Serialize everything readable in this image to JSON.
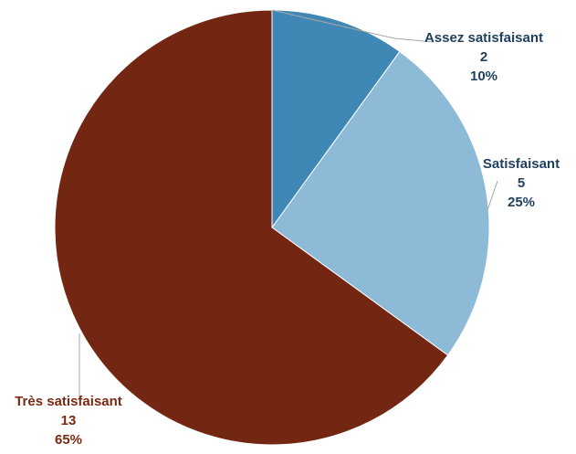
{
  "chart_data": {
    "type": "pie",
    "start_angle_deg": 0,
    "direction": "clockwise",
    "slices": [
      {
        "label": "Assez satisfaisant",
        "value": 2,
        "percent": "10%",
        "color": "#3f87b5",
        "label_color": "#1f3f5f"
      },
      {
        "label": "Satisfaisant",
        "value": 5,
        "percent": "25%",
        "color": "#8dbad6",
        "label_color": "#1f3f5f"
      },
      {
        "label": "Très satisfaisant",
        "value": 13,
        "percent": "65%",
        "color": "#732713",
        "label_color": "#7a2a12"
      }
    ],
    "leader_line_color": "#a6a6a6",
    "background": "#ffffff"
  }
}
